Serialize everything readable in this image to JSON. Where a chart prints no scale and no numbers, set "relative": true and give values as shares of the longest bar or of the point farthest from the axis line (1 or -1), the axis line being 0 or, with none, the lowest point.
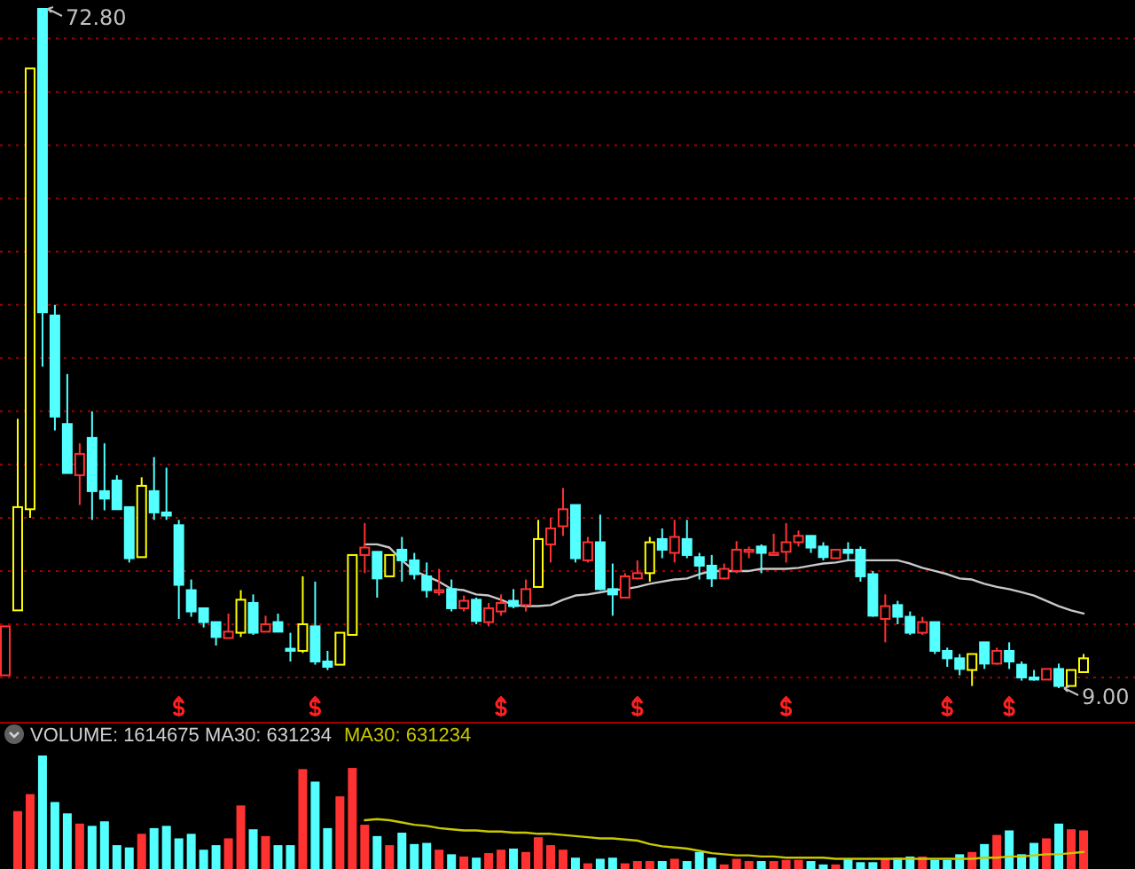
{
  "chart_data": [
    {
      "type": "candlestick",
      "grid": "y",
      "yticks": [
        {
          "value": 10,
          "label": null
        },
        {
          "value": 15,
          "label": null
        },
        {
          "value": 20,
          "label": null
        },
        {
          "value": 25,
          "label": null
        },
        {
          "value": 30,
          "label": null
        },
        {
          "value": 35,
          "label": null
        },
        {
          "value": 40,
          "label": null
        },
        {
          "value": 45,
          "label": null
        },
        {
          "value": 50,
          "label": null
        },
        {
          "value": 55,
          "label": null
        },
        {
          "value": 60,
          "label": null
        },
        {
          "value": 65,
          "label": null
        },
        {
          "value": 70,
          "label": null
        }
      ],
      "annotations": [
        "72.80",
        "9.00"
      ],
      "categories": [
        null,
        null,
        null,
        null,
        null,
        null,
        null,
        null,
        null,
        null,
        null,
        null,
        null,
        null,
        null,
        null,
        null,
        null,
        null,
        null,
        null,
        null,
        null,
        null,
        null,
        null,
        null,
        null,
        null,
        null,
        null,
        null,
        null,
        null,
        null,
        null,
        null,
        null,
        null,
        null,
        null,
        null,
        null,
        null,
        null,
        null,
        null,
        null,
        null,
        null,
        null,
        null,
        null,
        null,
        null,
        null,
        null,
        null,
        null,
        null,
        null,
        null,
        null,
        null,
        null,
        null,
        null,
        null,
        null,
        null,
        null,
        null,
        null,
        null,
        null,
        null,
        null,
        null,
        null,
        null,
        null,
        null,
        null,
        null,
        null,
        null,
        null,
        null
      ],
      "ohlc": [
        [
          10.2,
          14.8,
          10.2,
          14.8
        ],
        [
          16.3,
          34.3,
          16.3,
          26.0
        ],
        [
          25.8,
          67.2,
          25.0,
          67.2
        ],
        [
          72.8,
          72.8,
          39.2,
          44.3
        ],
        [
          44.0,
          45.0,
          33.2,
          34.5
        ],
        [
          33.8,
          38.5,
          29.2,
          29.2
        ],
        [
          29.0,
          32.0,
          26.2,
          31.0
        ],
        [
          32.5,
          35.0,
          24.8,
          27.5
        ],
        [
          27.5,
          32.0,
          25.7,
          26.8
        ],
        [
          28.5,
          29.0,
          25.8,
          25.8
        ],
        [
          26.0,
          26.0,
          20.8,
          21.2
        ],
        [
          21.3,
          28.8,
          21.3,
          28.0
        ],
        [
          27.5,
          30.7,
          24.8,
          25.5
        ],
        [
          25.5,
          29.7,
          24.8,
          25.2
        ],
        [
          24.3,
          24.8,
          15.5,
          18.7
        ],
        [
          18.2,
          19.2,
          15.7,
          16.2
        ],
        [
          16.5,
          16.5,
          14.7,
          15.2
        ],
        [
          15.2,
          15.2,
          13.0,
          13.8
        ],
        [
          13.7,
          16.0,
          13.7,
          14.3
        ],
        [
          14.2,
          18.2,
          13.8,
          17.3
        ],
        [
          17.0,
          17.8,
          14.0,
          14.2
        ],
        [
          14.3,
          15.8,
          14.3,
          15.0
        ],
        [
          15.2,
          16.0,
          14.3,
          14.3
        ],
        [
          12.7,
          14.2,
          11.5,
          12.5
        ],
        [
          12.5,
          19.5,
          12.3,
          15.0
        ],
        [
          14.8,
          19.0,
          11.2,
          11.5
        ],
        [
          11.5,
          12.5,
          10.7,
          11.0
        ],
        [
          11.2,
          14.2,
          11.2,
          14.2
        ],
        [
          14.0,
          21.5,
          14.0,
          21.5
        ],
        [
          21.5,
          24.5,
          19.8,
          22.2
        ],
        [
          21.8,
          21.8,
          17.5,
          19.3
        ],
        [
          19.5,
          21.5,
          19.5,
          21.5
        ],
        [
          22.0,
          23.2,
          19.0,
          21.0
        ],
        [
          21.0,
          21.7,
          19.2,
          19.7
        ],
        [
          19.5,
          20.8,
          17.5,
          18.2
        ],
        [
          18.0,
          20.2,
          17.7,
          18.2
        ],
        [
          18.3,
          19.2,
          16.2,
          16.5
        ],
        [
          16.5,
          17.7,
          16.2,
          17.2
        ],
        [
          17.3,
          17.5,
          15.0,
          15.3
        ],
        [
          15.2,
          17.0,
          14.8,
          16.5
        ],
        [
          16.2,
          17.8,
          15.8,
          17.0
        ],
        [
          17.2,
          18.3,
          16.5,
          16.7
        ],
        [
          16.8,
          19.2,
          16.2,
          18.3
        ],
        [
          18.5,
          24.8,
          18.5,
          23.0
        ],
        [
          22.5,
          25.0,
          20.8,
          24.0
        ],
        [
          24.2,
          27.8,
          23.3,
          25.8
        ],
        [
          26.2,
          26.2,
          20.8,
          21.2
        ],
        [
          21.0,
          23.2,
          20.8,
          22.7
        ],
        [
          22.7,
          25.3,
          18.2,
          18.3
        ],
        [
          18.3,
          20.7,
          15.8,
          17.8
        ],
        [
          17.5,
          19.8,
          17.5,
          19.5
        ],
        [
          19.3,
          21.0,
          19.2,
          19.8
        ],
        [
          19.8,
          23.2,
          19.0,
          22.7
        ],
        [
          23.0,
          24.0,
          21.2,
          22.0
        ],
        [
          21.7,
          24.8,
          20.8,
          23.2
        ],
        [
          23.0,
          24.8,
          21.2,
          21.5
        ],
        [
          21.3,
          21.7,
          19.2,
          20.5
        ],
        [
          20.5,
          21.5,
          18.5,
          19.3
        ],
        [
          19.3,
          20.7,
          19.2,
          20.2
        ],
        [
          20.0,
          22.8,
          19.8,
          22.0
        ],
        [
          21.8,
          22.3,
          21.2,
          22.0
        ],
        [
          22.3,
          22.5,
          19.8,
          21.7
        ],
        [
          21.5,
          23.5,
          21.5,
          21.7
        ],
        [
          21.8,
          24.5,
          20.8,
          22.7
        ],
        [
          22.7,
          23.8,
          22.3,
          23.3
        ],
        [
          23.3,
          23.3,
          21.7,
          22.2
        ],
        [
          22.3,
          22.7,
          21.0,
          21.3
        ],
        [
          21.2,
          22.0,
          21.2,
          22.0
        ],
        [
          22.0,
          22.7,
          21.0,
          21.7
        ],
        [
          22.0,
          22.3,
          19.0,
          19.5
        ],
        [
          19.7,
          20.0,
          15.7,
          15.8
        ],
        [
          15.5,
          17.8,
          13.3,
          16.7
        ],
        [
          16.8,
          17.2,
          15.0,
          15.7
        ],
        [
          15.7,
          16.2,
          14.0,
          14.2
        ],
        [
          14.2,
          15.7,
          14.0,
          15.2
        ],
        [
          15.2,
          15.2,
          12.2,
          12.5
        ],
        [
          12.5,
          12.8,
          11.0,
          11.8
        ],
        [
          11.8,
          12.2,
          10.2,
          10.8
        ],
        [
          10.7,
          12.2,
          9.2,
          12.2
        ],
        [
          13.3,
          13.3,
          10.8,
          11.3
        ],
        [
          11.3,
          12.8,
          11.2,
          12.5
        ],
        [
          12.5,
          13.3,
          10.8,
          11.5
        ],
        [
          11.2,
          11.5,
          9.7,
          10.0
        ],
        [
          10.0,
          10.7,
          9.7,
          9.8
        ],
        [
          9.8,
          10.8,
          9.8,
          10.8
        ],
        [
          10.8,
          11.3,
          9.0,
          9.2
        ],
        [
          9.2,
          10.7,
          9.2,
          10.7
        ],
        [
          10.5,
          12.2,
          10.5,
          11.8
        ]
      ],
      "colors": [
        "#ff3232",
        "#ffff00",
        "#ffff00",
        "#54ffff",
        "#54ffff",
        "#54ffff",
        "#ff3232",
        "#54ffff",
        "#54ffff",
        "#54ffff",
        "#54ffff",
        "#ffff00",
        "#54ffff",
        "#54ffff",
        "#54ffff",
        "#54ffff",
        "#54ffff",
        "#54ffff",
        "#ff3232",
        "#ffff00",
        "#54ffff",
        "#ff3232",
        "#54ffff",
        "#54ffff",
        "#ffff00",
        "#54ffff",
        "#54ffff",
        "#ffff00",
        "#ffff00",
        "#ff3232",
        "#54ffff",
        "#ffff00",
        "#54ffff",
        "#54ffff",
        "#54ffff",
        "#ff3232",
        "#54ffff",
        "#ff3232",
        "#54ffff",
        "#ff3232",
        "#ff3232",
        "#54ffff",
        "#ff3232",
        "#ffff00",
        "#ff3232",
        "#ff3232",
        "#54ffff",
        "#ff3232",
        "#54ffff",
        "#54ffff",
        "#ff3232",
        "#ff3232",
        "#ffff00",
        "#54ffff",
        "#ff3232",
        "#54ffff",
        "#54ffff",
        "#54ffff",
        "#ff3232",
        "#ff3232",
        "#ff3232",
        "#54ffff",
        "#ff3232",
        "#ff3232",
        "#ff3232",
        "#54ffff",
        "#54ffff",
        "#ff3232",
        "#54ffff",
        "#54ffff",
        "#54ffff",
        "#ff3232",
        "#54ffff",
        "#54ffff",
        "#ff3232",
        "#54ffff",
        "#54ffff",
        "#54ffff",
        "#ffff00",
        "#54ffff",
        "#ff3232",
        "#54ffff",
        "#54ffff",
        "#54ffff",
        "#ff3232",
        "#54ffff",
        "#ffff00",
        "#ffff00"
      ],
      "series": [
        {
          "type": "line",
          "color": "#c8c8c8",
          "values": [
            null,
            null,
            null,
            null,
            null,
            null,
            null,
            null,
            null,
            null,
            null,
            null,
            null,
            null,
            null,
            null,
            null,
            null,
            null,
            null,
            null,
            null,
            null,
            null,
            null,
            null,
            null,
            null,
            null,
            22.5,
            22.5,
            22.2,
            21.0,
            20.0,
            19.5,
            19.0,
            18.3,
            18.2,
            17.8,
            17.7,
            17.3,
            16.8,
            16.7,
            16.7,
            16.8,
            17.3,
            17.7,
            17.8,
            18.0,
            18.2,
            18.3,
            18.5,
            18.8,
            19.0,
            19.2,
            19.3,
            19.7,
            20.0,
            20.0,
            20.0,
            20.0,
            20.2,
            20.2,
            20.2,
            20.3,
            20.5,
            20.7,
            20.8,
            21.0,
            21.0,
            21.0,
            21.0,
            21.0,
            20.7,
            20.3,
            20.0,
            19.7,
            19.3,
            19.2,
            18.8,
            18.5,
            18.3,
            18.0,
            17.7,
            17.2,
            16.7,
            16.3,
            16.0
          ]
        }
      ]
    },
    {
      "type": "bar",
      "relative": true,
      "title": "VOLUME: 1614675 MA30: 631234",
      "legend": "top left",
      "categories": [
        null,
        null,
        null,
        null,
        null,
        null,
        null,
        null,
        null,
        null,
        null,
        null,
        null,
        null,
        null,
        null,
        null,
        null,
        null,
        null,
        null,
        null,
        null,
        null,
        null,
        null,
        null,
        null,
        null,
        null,
        null,
        null,
        null,
        null,
        null,
        null,
        null,
        null,
        null,
        null,
        null,
        null,
        null,
        null,
        null,
        null,
        null,
        null,
        null,
        null,
        null,
        null,
        null,
        null,
        null,
        null,
        null,
        null,
        null,
        null,
        null,
        null,
        null,
        null,
        null,
        null,
        null,
        null,
        null,
        null,
        null,
        null,
        null,
        null,
        null,
        null,
        null,
        null,
        null,
        null,
        null,
        null,
        null,
        null,
        null,
        null,
        null,
        null
      ],
      "series": [
        {
          "type": "bar",
          "colors": [
            null,
            "#ff3232",
            "#ff3232",
            "#54ffff",
            "#54ffff",
            "#54ffff",
            "#ff3232",
            "#54ffff",
            "#54ffff",
            "#54ffff",
            "#54ffff",
            "#ff3232",
            "#54ffff",
            "#54ffff",
            "#54ffff",
            "#54ffff",
            "#54ffff",
            "#54ffff",
            "#ff3232",
            "#ff3232",
            "#54ffff",
            "#ff3232",
            "#54ffff",
            "#54ffff",
            "#ff3232",
            "#54ffff",
            "#54ffff",
            "#ff3232",
            "#ff3232",
            "#ff3232",
            "#54ffff",
            "#ff3232",
            "#54ffff",
            "#54ffff",
            "#54ffff",
            "#ff3232",
            "#54ffff",
            "#ff3232",
            "#54ffff",
            "#ff3232",
            "#ff3232",
            "#54ffff",
            "#ff3232",
            "#ff3232",
            "#ff3232",
            "#ff3232",
            "#54ffff",
            "#ff3232",
            "#54ffff",
            "#54ffff",
            "#ff3232",
            "#ff3232",
            "#ff3232",
            "#54ffff",
            "#ff3232",
            "#54ffff",
            "#54ffff",
            "#54ffff",
            "#ff3232",
            "#ff3232",
            "#ff3232",
            "#54ffff",
            "#ff3232",
            "#ff3232",
            "#ff3232",
            "#54ffff",
            "#54ffff",
            "#ff3232",
            "#54ffff",
            "#54ffff",
            "#54ffff",
            "#ff3232",
            "#54ffff",
            "#54ffff",
            "#ff3232",
            "#54ffff",
            "#54ffff",
            "#54ffff",
            "#ff3232",
            "#54ffff",
            "#ff3232",
            "#54ffff",
            "#54ffff",
            "#54ffff",
            "#ff3232",
            "#54ffff",
            "#ff3232",
            "#ff3232"
          ],
          "values": [
            null,
            0.51,
            0.66,
            1,
            0.59,
            0.49,
            0.4,
            0.38,
            0.42,
            0.21,
            0.19,
            0.31,
            0.36,
            0.38,
            0.27,
            0.31,
            0.17,
            0.21,
            0.27,
            0.56,
            0.35,
            0.29,
            0.21,
            0.21,
            0.88,
            0.77,
            0.36,
            0.64,
            0.89,
            0.39,
            0.29,
            0.21,
            0.32,
            0.22,
            0.23,
            0.17,
            0.13,
            0.11,
            0.1,
            0.14,
            0.17,
            0.18,
            0.15,
            0.28,
            0.21,
            0.17,
            0.1,
            0.05,
            0.09,
            0.1,
            0.05,
            0.07,
            0.07,
            0.07,
            0.09,
            0.07,
            0.15,
            0.1,
            0.04,
            0.09,
            0.07,
            0.07,
            0.07,
            0.08,
            0.08,
            0.07,
            0.04,
            0.04,
            0.09,
            0.06,
            0.06,
            0.09,
            0.1,
            0.11,
            0.11,
            0.08,
            0.08,
            0.13,
            0.15,
            0.22,
            0.3,
            0.34,
            0.13,
            0.23,
            0.27,
            0.4,
            0.35,
            0.34
          ]
        },
        {
          "type": "line",
          "name": "MA30: 631234",
          "color": "#c8c800",
          "values": [
            null,
            null,
            null,
            null,
            null,
            null,
            null,
            null,
            null,
            null,
            null,
            null,
            null,
            null,
            null,
            null,
            null,
            null,
            null,
            null,
            null,
            null,
            null,
            null,
            null,
            null,
            null,
            null,
            null,
            0.43,
            0.44,
            0.43,
            0.41,
            0.39,
            0.38,
            0.36,
            0.35,
            0.34,
            0.34,
            0.33,
            0.33,
            0.32,
            0.32,
            0.31,
            0.31,
            0.3,
            0.29,
            0.28,
            0.27,
            0.27,
            0.26,
            0.25,
            0.22,
            0.2,
            0.19,
            0.18,
            0.16,
            0.14,
            0.13,
            0.12,
            0.12,
            0.11,
            0.11,
            0.1,
            0.1,
            0.1,
            0.1,
            0.09,
            0.09,
            0.09,
            0.09,
            0.09,
            0.09,
            0.09,
            0.09,
            0.09,
            0.09,
            0.09,
            0.09,
            0.1,
            0.1,
            0.11,
            0.11,
            0.12,
            0.13,
            0.13,
            0.14,
            0.15
          ]
        }
      ]
    }
  ]
}
